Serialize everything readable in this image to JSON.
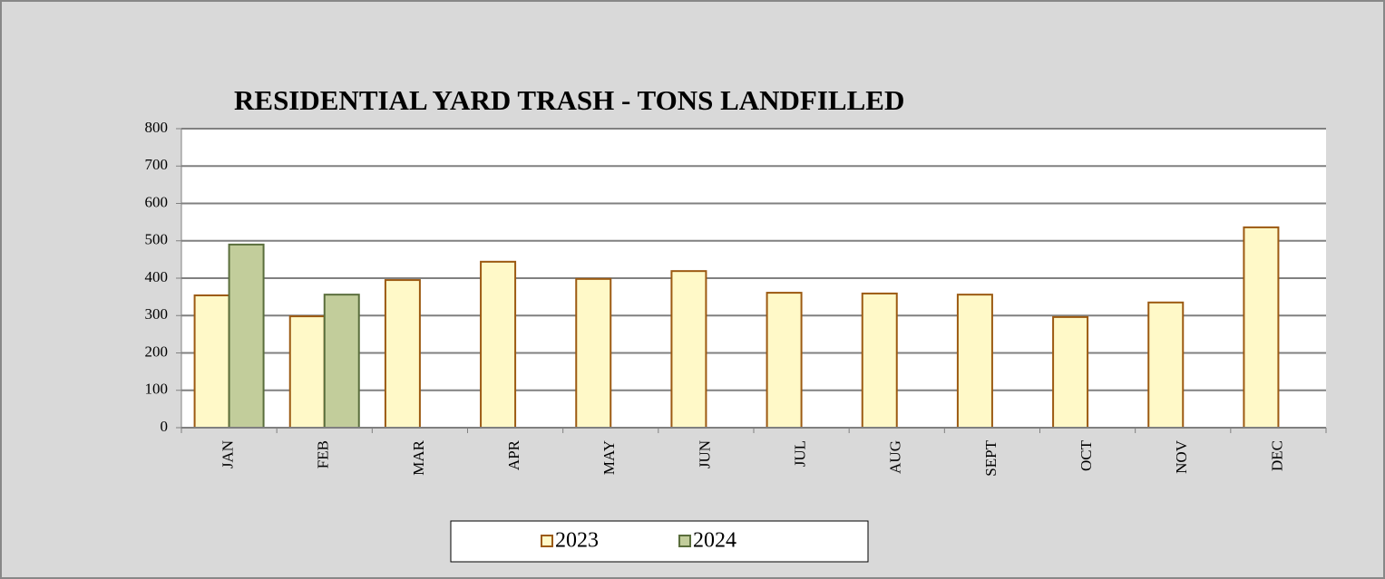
{
  "chart_data": {
    "type": "bar",
    "title": "RESIDENTIAL YARD TRASH - TONS LANDFILLED",
    "categories": [
      "JAN",
      "FEB",
      "MAR",
      "APR",
      "MAY",
      "JUN",
      "JUL",
      "AUG",
      "SEPT",
      "OCT",
      "NOV",
      "DEC"
    ],
    "series": [
      {
        "name": "2023",
        "color": "#fff9c8",
        "edge_color": "#9c5a12",
        "values": [
          354,
          298,
          395,
          444,
          398,
          419,
          361,
          359,
          356,
          296,
          335,
          536
        ]
      },
      {
        "name": "2024",
        "color": "#c2cd9b",
        "edge_color": "#5a6e3c",
        "values": [
          490,
          356,
          null,
          null,
          null,
          null,
          null,
          null,
          null,
          null,
          null,
          null
        ]
      }
    ],
    "ylim": [
      0,
      800
    ],
    "yticks": [
      0,
      100,
      200,
      300,
      400,
      500,
      600,
      700,
      800
    ],
    "grid": true,
    "legend": "bottom"
  }
}
